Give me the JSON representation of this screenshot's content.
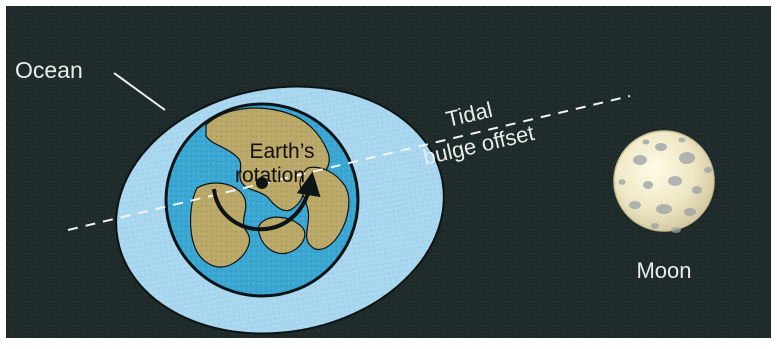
{
  "labels": {
    "ocean": "Ocean",
    "earth_rotation_line1": "Earth’s",
    "earth_rotation_line2": "rotation",
    "tidal_line1": "Tidal",
    "tidal_line2": "bulge offset",
    "moon": "Moon"
  },
  "colors": {
    "background": "#1f2b2a",
    "border": "#ffffff",
    "ocean_bulge": "#a8d7ef",
    "earth_ocean": "#3aa7d2",
    "land": "#b9a867",
    "outline": "#0d1416",
    "moon": "#efe8c6",
    "moon_craters": "#9aa0a6",
    "text_dark": "#111111",
    "text_light": "#e8eceb"
  },
  "icons": {
    "rotation_arrow": "curved-arrow-icon",
    "earth_center": "dot-icon"
  }
}
